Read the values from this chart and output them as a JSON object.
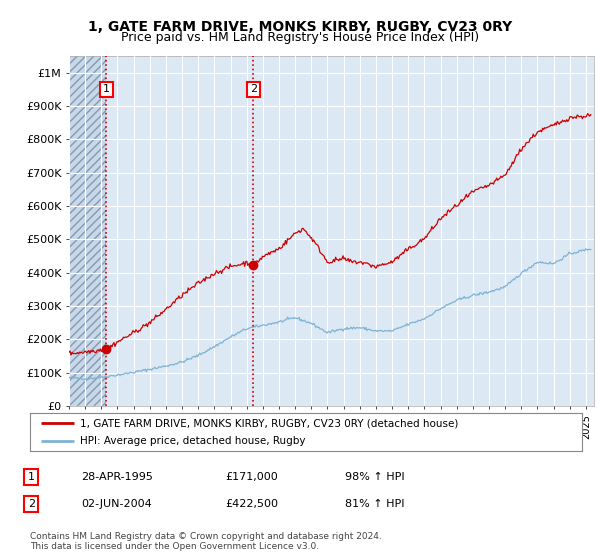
{
  "title_line1": "1, GATE FARM DRIVE, MONKS KIRBY, RUGBY, CV23 0RY",
  "title_line2": "Price paid vs. HM Land Registry's House Price Index (HPI)",
  "ylim": [
    0,
    1050000
  ],
  "xlim_start": 1993.0,
  "xlim_end": 2025.5,
  "yticks": [
    0,
    100000,
    200000,
    300000,
    400000,
    500000,
    600000,
    700000,
    800000,
    900000,
    1000000
  ],
  "ytick_labels": [
    "£0",
    "£100K",
    "£200K",
    "£300K",
    "£400K",
    "£500K",
    "£600K",
    "£700K",
    "£800K",
    "£900K",
    "£1M"
  ],
  "xticks": [
    1993,
    1994,
    1995,
    1996,
    1997,
    1998,
    1999,
    2000,
    2001,
    2002,
    2003,
    2004,
    2005,
    2006,
    2007,
    2008,
    2009,
    2010,
    2011,
    2012,
    2013,
    2014,
    2015,
    2016,
    2017,
    2018,
    2019,
    2020,
    2021,
    2022,
    2023,
    2024,
    2025
  ],
  "sale1_x": 1995.32,
  "sale1_y": 171000,
  "sale1_label": "1",
  "sale2_x": 2004.42,
  "sale2_y": 422500,
  "sale2_label": "2",
  "bg_color": "#ffffff",
  "plot_bg_color": "#dce9f5",
  "hatch_bg_color": "#c8d8ec",
  "grid_color": "#ffffff",
  "red_line_color": "#cc0000",
  "blue_line_color": "#7fb3d3",
  "dashed_line_color": "#cc0000",
  "legend_line1": "1, GATE FARM DRIVE, MONKS KIRBY, RUGBY, CV23 0RY (detached house)",
  "legend_line2": "HPI: Average price, detached house, Rugby",
  "table_row1": [
    "1",
    "28-APR-1995",
    "£171,000",
    "98% ↑ HPI"
  ],
  "table_row2": [
    "2",
    "02-JUN-2004",
    "£422,500",
    "81% ↑ HPI"
  ],
  "footnote": "Contains HM Land Registry data © Crown copyright and database right 2024.\nThis data is licensed under the Open Government Licence v3.0.",
  "title_fontsize": 10,
  "subtitle_fontsize": 9
}
